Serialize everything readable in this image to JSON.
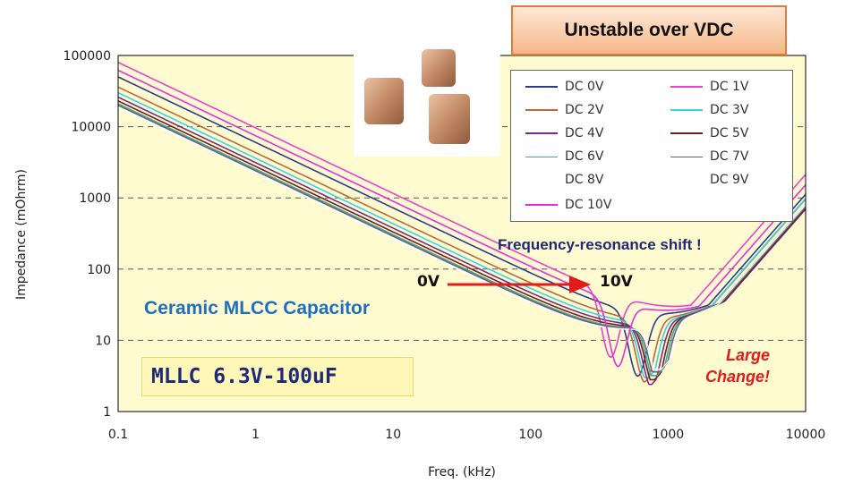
{
  "chart_data": {
    "type": "line",
    "title": "Unstable over VDC",
    "xlabel": "Freq. (kHz)",
    "ylabel": "Impedance (mOhrm)",
    "x_scale": "log",
    "y_scale": "log",
    "xlim": [
      0.1,
      10000
    ],
    "ylim": [
      1,
      100000
    ],
    "x_ticks": [
      "0.1",
      "1",
      "10",
      "100",
      "1000",
      "10000"
    ],
    "y_ticks": [
      "1",
      "10",
      "100",
      "1000",
      "10000",
      "100000"
    ],
    "grid": "dashed horizontal",
    "legend_placement": "top-right",
    "series": [
      {
        "name": "DC 0V",
        "color": "#2b3a8f",
        "start_impedance": 50000,
        "resonance_khz": 600,
        "min_impedance": 2.3
      },
      {
        "name": "DC 1V",
        "color": "#ee3fd0",
        "start_impedance": 80000,
        "resonance_khz": 380,
        "min_impedance": 1.6
      },
      {
        "name": "DC 2V",
        "color": "#c0673a",
        "start_impedance": 36000,
        "resonance_khz": 680,
        "min_impedance": 2.6
      },
      {
        "name": "DC 3V",
        "color": "#33d6e6",
        "start_impedance": 30000,
        "resonance_khz": 720,
        "min_impedance": 3.0
      },
      {
        "name": "DC 4V",
        "color": "#7b2a8c",
        "start_impedance": 26000,
        "resonance_khz": 760,
        "min_impedance": 2.4
      },
      {
        "name": "DC 5V",
        "color": "#7a1a1a",
        "start_impedance": 23000,
        "resonance_khz": 800,
        "min_impedance": 2.8
      },
      {
        "name": "DC 6V",
        "color": "#3fa9a0",
        "start_impedance": 21000,
        "resonance_khz": 830,
        "min_impedance": 3.2
      },
      {
        "name": "DC 7V",
        "color": "#6b5f73",
        "start_impedance": 20000,
        "resonance_khz": 860,
        "min_impedance": 3.6
      },
      {
        "name": "DC 8V",
        "color": "#ffffff",
        "start_impedance": 19000,
        "resonance_khz": 880,
        "min_impedance": 3.8
      },
      {
        "name": "DC 9V",
        "color": "#ffffff",
        "start_impedance": 18500,
        "resonance_khz": 900,
        "min_impedance": 4.0
      },
      {
        "name": "DC 10V",
        "color": "#e52ee0",
        "start_impedance": 62000,
        "resonance_khz": 430,
        "min_impedance": 1.5
      }
    ],
    "annotations": {
      "shift_label": "Frequency-resonance shift !",
      "arrow_from": "0V",
      "arrow_to": "10V",
      "product_label": "Ceramic MLCC Capacitor",
      "part_label": "MLLC 6.3V-100uF",
      "change_line1": "Large",
      "change_line2": "Change!"
    },
    "colors": {
      "plot_background": "#fffbd0",
      "title_border": "#e07b39",
      "arrow": "#e31b1b",
      "product_label": "#1f6fbf",
      "part_label": "#1e2a78",
      "change_label": "#e01b1b"
    }
  }
}
